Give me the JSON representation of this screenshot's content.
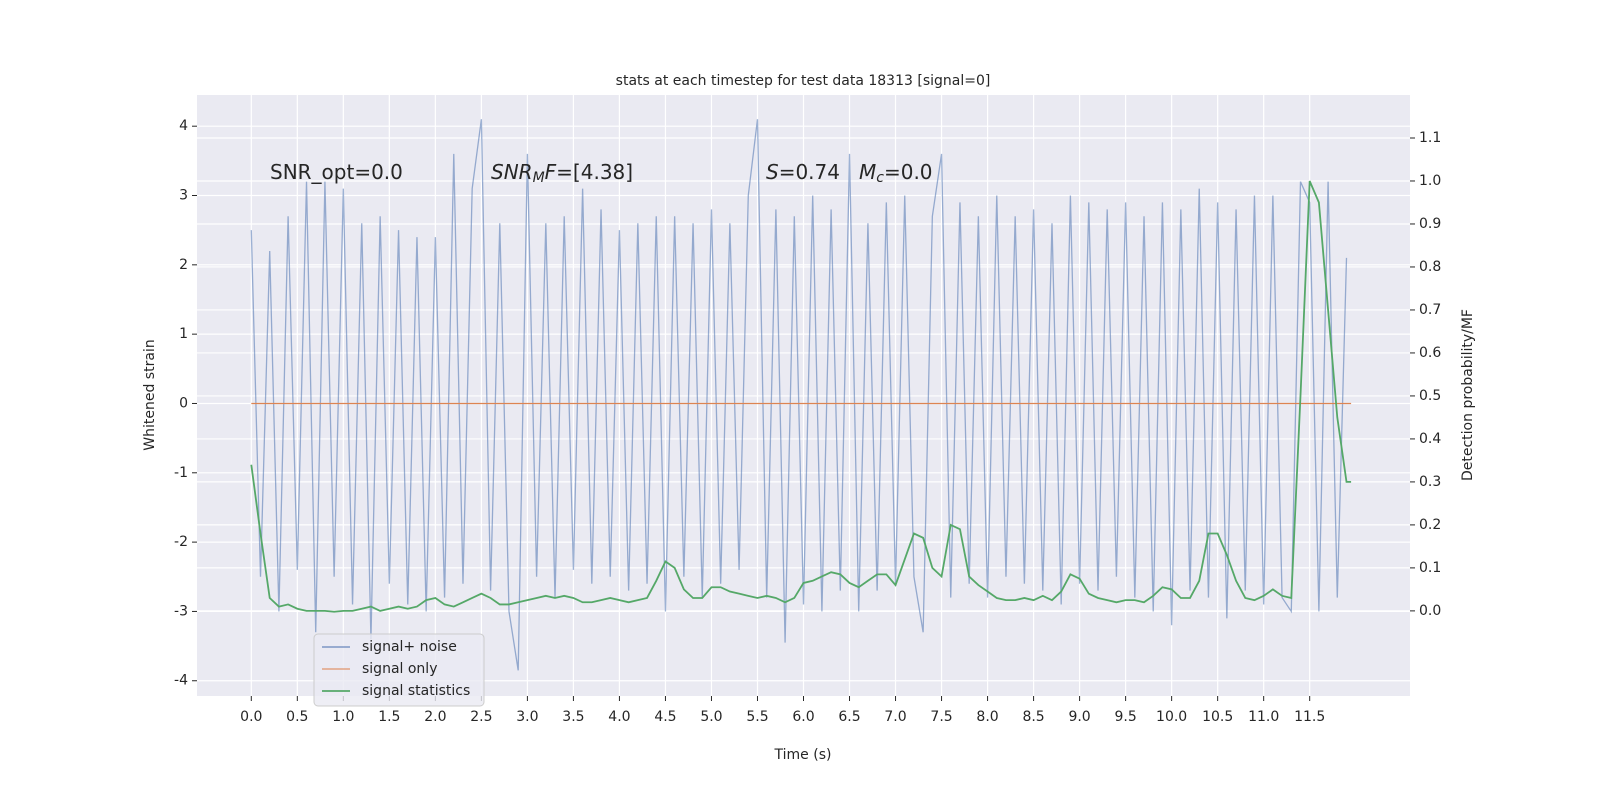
{
  "chart_data": {
    "type": "line",
    "title": "stats at each timestep for test data 18313 [signal=0]",
    "xlabel": "Time (s)",
    "ylabel": "Whitened strain",
    "y2label": "Detection probability/MF",
    "xlim": [
      -0.59,
      12.59
    ],
    "ylim": [
      -4.22,
      4.45
    ],
    "y2lim": [
      -0.198,
      1.2
    ],
    "xticks": [
      {
        "value": 0,
        "label": "0.0"
      },
      0.5,
      {
        "value": 1,
        "label": "1.0"
      },
      1.5,
      {
        "value": 2,
        "label": "2.0"
      },
      2.5,
      {
        "value": 3,
        "label": "3.0"
      },
      3.5,
      {
        "value": 4,
        "label": "4.0"
      },
      4.5,
      {
        "value": 5,
        "label": "5.0"
      },
      5.5,
      {
        "value": 6,
        "label": "6.0"
      },
      6.5,
      {
        "value": 7,
        "label": "7.0"
      },
      7.5,
      {
        "value": 8,
        "label": "8.0"
      },
      8.5,
      {
        "value": 9,
        "label": "9.0"
      },
      9.5,
      {
        "value": 10,
        "label": "10.0"
      },
      10.5,
      {
        "value": 11,
        "label": "11.0"
      },
      11.5
    ],
    "yticks": [
      -4,
      -3,
      -2,
      -1,
      0,
      1,
      2,
      3,
      4
    ],
    "y2ticks": [
      {
        "value": 0,
        "label": "0.0"
      },
      0.1,
      0.2,
      0.3,
      0.4,
      0.5,
      0.6,
      0.7,
      0.8,
      0.9,
      {
        "value": 1,
        "label": "1.0"
      },
      1.1
    ],
    "grid": true,
    "legend": "lower left",
    "annotations": [
      {
        "parts": [
          "SNR_opt=0.0"
        ]
      },
      {
        "parts": [
          "SNR",
          "M",
          "F",
          "=[4.38]"
        ]
      },
      {
        "parts": [
          "S",
          "=0.74"
        ]
      },
      {
        "parts": [
          "M",
          "c",
          "=0.0"
        ]
      }
    ],
    "series": [
      {
        "name": "signal+ noise",
        "color": "#4c72b0",
        "x": [
          0,
          0.1,
          0.2,
          0.3,
          0.4,
          0.5,
          0.6,
          0.7,
          0.8,
          0.9,
          1,
          1.1,
          1.2,
          1.3,
          1.4,
          1.5,
          1.6,
          1.7,
          1.8,
          1.9,
          2,
          2.1,
          2.2,
          2.3,
          2.4,
          2.5,
          2.6,
          2.7,
          2.8,
          2.9,
          3,
          3.1,
          3.2,
          3.3,
          3.4,
          3.5,
          3.6,
          3.7,
          3.8,
          3.9,
          4,
          4.1,
          4.2,
          4.3,
          4.4,
          4.5,
          4.6,
          4.7,
          4.8,
          4.9,
          5,
          5.1,
          5.2,
          5.3,
          5.4,
          5.5,
          5.6,
          5.7,
          5.8,
          5.9,
          6,
          6.1,
          6.2,
          6.3,
          6.4,
          6.5,
          6.6,
          6.7,
          6.8,
          6.9,
          7,
          7.1,
          7.2,
          7.3,
          7.4,
          7.5,
          7.6,
          7.7,
          7.8,
          7.9,
          8,
          8.1,
          8.2,
          8.3,
          8.4,
          8.5,
          8.6,
          8.7,
          8.8,
          8.9,
          9,
          9.1,
          9.2,
          9.3,
          9.4,
          9.5,
          9.6,
          9.7,
          9.8,
          9.9,
          10,
          10.1,
          10.2,
          10.3,
          10.4,
          10.5,
          10.6,
          10.7,
          10.8,
          10.9,
          11,
          11.1,
          11.2,
          11.3,
          11.4,
          11.5,
          11.6,
          11.7,
          11.8,
          11.9
        ],
        "values": [
          2.5,
          -2.5,
          2.2,
          -3.0,
          2.7,
          -2.4,
          3.2,
          -3.3,
          3.2,
          -2.5,
          3.1,
          -2.9,
          2.6,
          -3.4,
          2.7,
          -2.6,
          2.5,
          -2.9,
          2.4,
          -3.0,
          2.4,
          -2.8,
          3.6,
          -2.6,
          3.1,
          4.1,
          -2.7,
          2.6,
          -3.0,
          -3.85,
          3.6,
          -2.5,
          2.6,
          -2.8,
          2.7,
          -2.4,
          3.1,
          -2.6,
          2.8,
          -2.5,
          2.5,
          -2.7,
          2.6,
          -2.6,
          2.7,
          -3.0,
          2.7,
          -2.5,
          2.6,
          -2.8,
          2.8,
          -2.6,
          2.6,
          -2.4,
          3.0,
          4.1,
          -2.8,
          2.8,
          -3.45,
          2.7,
          -2.9,
          3.0,
          -3.0,
          2.8,
          -2.7,
          3.6,
          -3.0,
          2.6,
          -2.7,
          2.9,
          -2.6,
          3.0,
          -2.5,
          -3.3,
          2.7,
          3.6,
          -2.8,
          2.9,
          -2.6,
          2.7,
          -2.8,
          3.0,
          -2.5,
          2.7,
          -2.6,
          2.8,
          -2.7,
          2.6,
          -2.9,
          3.0,
          -2.6,
          2.9,
          -2.7,
          2.8,
          -2.5,
          2.9,
          -2.8,
          2.7,
          -3.0,
          2.9,
          -3.2,
          2.8,
          -2.7,
          3.1,
          -2.8,
          2.9,
          -3.1,
          2.8,
          -2.7,
          3.0,
          -2.9,
          3.0,
          -2.8,
          -3.0,
          3.2,
          2.9,
          -3.0,
          3.2,
          -2.8,
          2.1
        ]
      },
      {
        "name": "signal only",
        "color": "#dd8452",
        "x": [
          0,
          11.95
        ],
        "values": [
          0,
          0
        ]
      },
      {
        "name": "signal statistics",
        "color": "#55a868",
        "axis": "y2",
        "x": [
          0,
          0.1,
          0.2,
          0.3,
          0.4,
          0.5,
          0.6,
          0.7,
          0.8,
          0.9,
          1,
          1.1,
          1.2,
          1.3,
          1.4,
          1.5,
          1.6,
          1.7,
          1.8,
          1.9,
          2,
          2.1,
          2.2,
          2.3,
          2.4,
          2.5,
          2.6,
          2.7,
          2.8,
          2.9,
          3,
          3.1,
          3.2,
          3.3,
          3.4,
          3.5,
          3.6,
          3.7,
          3.8,
          3.9,
          4,
          4.1,
          4.2,
          4.3,
          4.4,
          4.5,
          4.6,
          4.7,
          4.8,
          4.9,
          5,
          5.1,
          5.2,
          5.3,
          5.4,
          5.5,
          5.6,
          5.7,
          5.8,
          5.9,
          6,
          6.1,
          6.2,
          6.3,
          6.4,
          6.5,
          6.6,
          6.7,
          6.8,
          6.9,
          7,
          7.1,
          7.2,
          7.3,
          7.4,
          7.5,
          7.6,
          7.7,
          7.8,
          7.9,
          8,
          8.1,
          8.2,
          8.3,
          8.4,
          8.5,
          8.6,
          8.7,
          8.8,
          8.9,
          9,
          9.1,
          9.2,
          9.3,
          9.4,
          9.5,
          9.6,
          9.7,
          9.8,
          9.9,
          10,
          10.1,
          10.2,
          10.3,
          10.4,
          10.5,
          10.6,
          10.7,
          10.8,
          10.9,
          11,
          11.1,
          11.2,
          11.3,
          11.4,
          11.5,
          11.6,
          11.7,
          11.8,
          11.9,
          11.95
        ],
        "values": [
          0.34,
          0.18,
          0.03,
          0.01,
          0.015,
          0.005,
          0.0,
          0.0,
          0.0,
          -0.002,
          0.0,
          0.0,
          0.005,
          0.01,
          0.0,
          0.005,
          0.01,
          0.005,
          0.01,
          0.025,
          0.03,
          0.015,
          0.01,
          0.02,
          0.03,
          0.04,
          0.03,
          0.015,
          0.015,
          0.02,
          0.025,
          0.03,
          0.035,
          0.03,
          0.035,
          0.03,
          0.02,
          0.02,
          0.025,
          0.03,
          0.025,
          0.02,
          0.025,
          0.03,
          0.07,
          0.115,
          0.1,
          0.05,
          0.03,
          0.03,
          0.055,
          0.055,
          0.045,
          0.04,
          0.035,
          0.03,
          0.035,
          0.03,
          0.02,
          0.03,
          0.065,
          0.07,
          0.08,
          0.09,
          0.085,
          0.065,
          0.055,
          0.07,
          0.085,
          0.085,
          0.06,
          0.12,
          0.18,
          0.17,
          0.1,
          0.08,
          0.2,
          0.19,
          0.08,
          0.06,
          0.045,
          0.03,
          0.025,
          0.025,
          0.03,
          0.025,
          0.035,
          0.025,
          0.045,
          0.085,
          0.075,
          0.04,
          0.03,
          0.025,
          0.02,
          0.025,
          0.025,
          0.02,
          0.035,
          0.055,
          0.05,
          0.03,
          0.03,
          0.07,
          0.18,
          0.18,
          0.13,
          0.07,
          0.03,
          0.025,
          0.035,
          0.05,
          0.035,
          0.03,
          0.5,
          1.0,
          0.95,
          0.7,
          0.45,
          0.3,
          0.3
        ]
      }
    ]
  }
}
